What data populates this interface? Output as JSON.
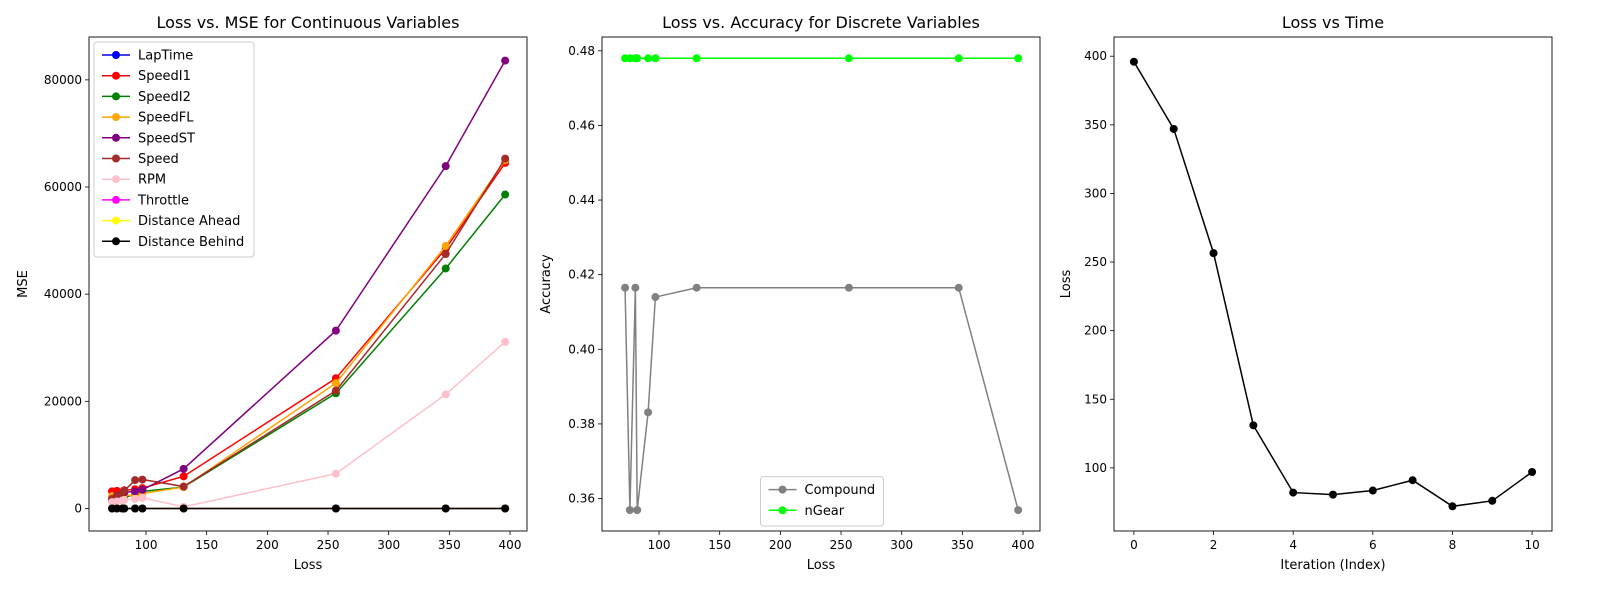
{
  "chart_data": [
    {
      "type": "line",
      "title": "Loss vs. MSE for Continuous Variables",
      "xlabel": "Loss",
      "ylabel": "MSE",
      "xlim": [
        53,
        414
      ],
      "ylim": [
        -4200,
        88000
      ],
      "xticks": [
        100,
        150,
        200,
        250,
        300,
        350,
        400
      ],
      "yticks": [
        0,
        20000,
        40000,
        60000,
        80000
      ],
      "legend": "top-left",
      "x": [
        72.0,
        76.0,
        80.5,
        82.0,
        91.0,
        97.0,
        131.0,
        256.5,
        347.0,
        396.0
      ],
      "series": [
        {
          "name": "LapTime",
          "color": "#0000ff",
          "values": [
            0,
            0,
            0,
            0,
            0,
            0,
            0,
            0,
            0,
            0
          ]
        },
        {
          "name": "SpeedI1",
          "color": "#ff0000",
          "values": [
            3200,
            3300,
            3100,
            3400,
            3600,
            3800,
            6000,
            24300,
            48500,
            64500
          ]
        },
        {
          "name": "SpeedI2",
          "color": "#008000",
          "values": [
            1500,
            1800,
            2000,
            2100,
            2600,
            3200,
            4000,
            21500,
            44800,
            58600
          ]
        },
        {
          "name": "SpeedFL",
          "color": "#ffa500",
          "values": [
            2300,
            2400,
            2600,
            2700,
            2200,
            2800,
            4000,
            23400,
            49000,
            65000
          ]
        },
        {
          "name": "SpeedST",
          "color": "#800080",
          "values": [
            1700,
            2400,
            2800,
            3000,
            3200,
            3500,
            7400,
            33200,
            63900,
            83600
          ]
        },
        {
          "name": "Speed",
          "color": "#a52a2a",
          "values": [
            1800,
            2300,
            3000,
            3300,
            5300,
            5400,
            4100,
            22000,
            47500,
            65300
          ]
        },
        {
          "name": "RPM",
          "color": "#ffc0cb",
          "values": [
            1200,
            1300,
            1500,
            1600,
            1800,
            2000,
            300,
            6500,
            21300,
            31100
          ]
        },
        {
          "name": "Throttle",
          "color": "#ff00ff",
          "values": [
            0,
            0,
            0,
            0,
            0,
            0,
            0,
            0,
            0,
            0
          ]
        },
        {
          "name": "Distance Ahead",
          "color": "#ffff00",
          "values": [
            0,
            0,
            0,
            0,
            0,
            0,
            0,
            0,
            0,
            0
          ]
        },
        {
          "name": "Distance Behind",
          "color": "#000000",
          "values": [
            0,
            0,
            0,
            0,
            0,
            0,
            0,
            0,
            0,
            0
          ]
        }
      ]
    },
    {
      "type": "line",
      "title": "Loss vs. Accuracy for Discrete Variables",
      "xlabel": "Loss",
      "ylabel": "Accuracy",
      "xlim": [
        53,
        414
      ],
      "ylim": [
        0.3513,
        0.4837
      ],
      "xticks": [
        100,
        150,
        200,
        250,
        300,
        350,
        400
      ],
      "yticks": [
        0.36,
        0.38,
        0.4,
        0.42,
        0.44,
        0.46,
        0.48
      ],
      "legend": "lower-center",
      "x": [
        72.0,
        76.0,
        80.5,
        82.0,
        91.0,
        97.0,
        131.0,
        256.5,
        347.0,
        396.0
      ],
      "series": [
        {
          "name": "Compound",
          "color": "#808080",
          "values": [
            0.4165,
            0.3569,
            0.4165,
            0.3569,
            0.3831,
            0.414,
            0.4165,
            0.4165,
            0.4165,
            0.3569
          ]
        },
        {
          "name": "nGear",
          "color": "#00ff00",
          "values": [
            0.478,
            0.478,
            0.478,
            0.478,
            0.478,
            0.478,
            0.478,
            0.478,
            0.478,
            0.478
          ]
        }
      ]
    },
    {
      "type": "line",
      "title": "Loss vs Time",
      "xlabel": "Iteration (Index)",
      "ylabel": "Loss",
      "xlim": [
        -0.5,
        10.5
      ],
      "ylim": [
        54,
        414
      ],
      "xticks": [
        0,
        2,
        4,
        6,
        8,
        10
      ],
      "yticks": [
        100,
        150,
        200,
        250,
        300,
        350,
        400
      ],
      "legend": "none",
      "x": [
        0,
        1,
        2,
        3,
        4,
        5,
        6,
        7,
        8,
        9,
        10
      ],
      "series": [
        {
          "name": "",
          "color": "#000000",
          "values": [
            396.0,
            347.0,
            256.5,
            131.0,
            82.0,
            80.5,
            83.5,
            91.0,
            72.0,
            76.0,
            97.0
          ]
        }
      ]
    }
  ]
}
